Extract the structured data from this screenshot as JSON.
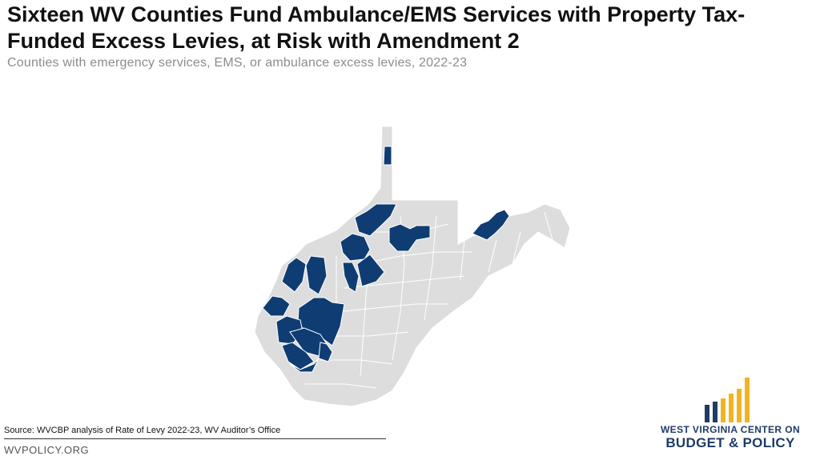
{
  "header": {
    "title": "Sixteen WV Counties Fund Ambulance/EMS Services with Property Tax-Funded Excess Levies, at Risk with Amendment 2",
    "subtitle": "Counties with emergency services, EMS, or ambulance excess levies, 2022-23"
  },
  "map": {
    "colors": {
      "levy_county": "#0f3d73",
      "other_county": "#dddddd",
      "border": "#ffffff"
    }
  },
  "footer": {
    "source": "Source: WVCBP analysis of Rate of Levy 2022-23, WV Auditor’s Office",
    "website": "WVPOLICY.ORG"
  },
  "logo": {
    "line1": "WEST VIRGINIA CENTER ON",
    "line2": "BUDGET & POLICY",
    "colors": {
      "navy": "#1f3b66",
      "gold": "#f0b323"
    }
  }
}
